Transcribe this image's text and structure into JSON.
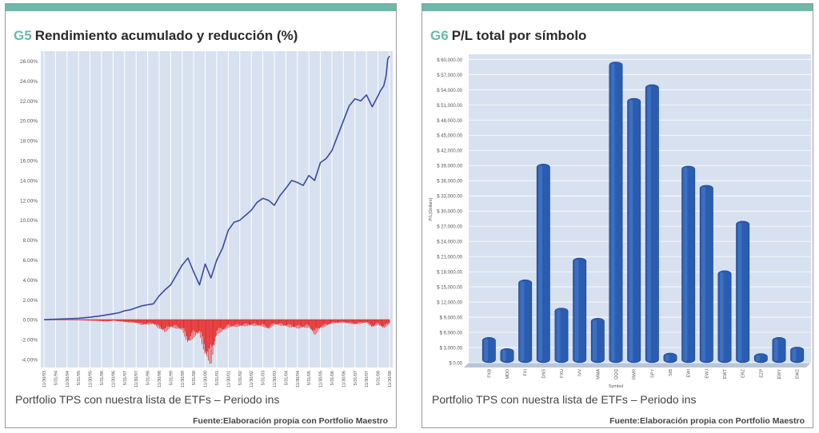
{
  "colors": {
    "accent": "#6bb9a8",
    "plot_bg": "#d7e1ef",
    "line": "#3b4a9e",
    "drawdown": "#e53030",
    "bar": "#2a5cb0"
  },
  "panels": [
    {
      "code": "G5",
      "title": "Rendimiento acumulado y reducción (%)",
      "caption": "Portfolio TPS con nuestra lista de ETFs – Periodo ins",
      "source": "Fuente:Elaboración propia con Portfolio Maestro"
    },
    {
      "code": "G6",
      "title": "P/L total por símbolo",
      "caption": "Portfolio TPS con nuestra lista de ETFs – Periodo ins",
      "source": "Fuente:Elaboración propia con Portfolio Maestro"
    }
  ],
  "chart_data": [
    {
      "type": "area",
      "title": "Rendimiento acumulado y reducción (%)",
      "xlabel": "",
      "ylabel": "",
      "ylim": [
        -4.8,
        27
      ],
      "yticks": [
        26,
        24,
        22,
        20,
        18,
        16,
        14,
        12,
        10,
        8,
        6,
        4,
        2,
        0,
        -2,
        -4
      ],
      "ytick_labels": [
        "26.00%",
        "24.00%",
        "22.00%",
        "20.00%",
        "18.00%",
        "16.00%",
        "14.00%",
        "12.00%",
        "10.00%",
        "8.00%",
        "6.00%",
        "4.00%",
        "2.00%",
        "0.00%",
        "-2.00%",
        "-4.00%"
      ],
      "xtick_labels": [
        "11/30/93",
        "5/31/94",
        "11/30/94",
        "5/31/95",
        "11/30/95",
        "5/31/96",
        "11/30/96",
        "5/31/97",
        "11/30/97",
        "5/31/98",
        "11/30/98",
        "5/31/99",
        "11/30/99",
        "5/31/00",
        "11/30/00",
        "5/31/01",
        "11/30/01",
        "5/31/02",
        "11/30/02",
        "5/31/03",
        "11/30/03",
        "5/31/04",
        "11/30/04",
        "5/31/05",
        "11/30/05",
        "5/31/06",
        "11/30/06",
        "5/31/07",
        "11/30/07",
        "5/31/08",
        "11/30/08"
      ],
      "grid": true,
      "series": [
        {
          "kind": "line",
          "x": [
            0,
            1,
            2,
            3,
            4,
            5,
            6,
            6.5,
            7,
            7.5,
            8,
            8.5,
            9,
            9.5,
            10,
            10.5,
            11,
            11.5,
            12,
            12.5,
            13,
            13.5,
            14,
            14.5,
            15,
            15.5,
            16,
            16.5,
            17,
            17.5,
            18,
            18.5,
            19,
            19.5,
            20,
            20.5,
            21,
            21.5,
            22,
            22.5,
            23,
            23.5,
            24,
            24.5,
            25,
            25.5,
            26,
            26.5,
            27,
            27.5,
            28,
            28.5,
            29,
            29.2,
            29.5,
            29.7,
            29.85,
            30
          ],
          "y": [
            0,
            0.05,
            0.1,
            0.15,
            0.25,
            0.4,
            0.6,
            0.7,
            0.9,
            1.0,
            1.2,
            1.4,
            1.5,
            1.6,
            2.4,
            3.0,
            3.5,
            4.5,
            5.5,
            6.2,
            4.8,
            3.5,
            5.6,
            4.2,
            6.0,
            7.2,
            9.0,
            9.8,
            10.0,
            10.5,
            11.0,
            11.8,
            12.2,
            12.0,
            11.5,
            12.5,
            13.2,
            14.0,
            13.8,
            13.5,
            14.5,
            14.0,
            15.8,
            16.2,
            17.0,
            18.5,
            20.0,
            21.5,
            22.2,
            22.0,
            22.6,
            21.4,
            22.5,
            23.0,
            23.5,
            24.5,
            26.2,
            26.5
          ]
        },
        {
          "kind": "drawdown",
          "x": [
            0,
            3,
            5,
            5.5,
            6,
            7,
            8,
            8.5,
            9,
            9.5,
            10,
            10.5,
            11,
            11.5,
            12,
            12.5,
            13,
            13.5,
            14,
            14.5,
            15,
            15.5,
            16,
            17,
            18,
            19,
            19.5,
            20,
            21,
            22,
            23,
            23.5,
            24,
            25,
            26,
            27,
            28,
            28.5,
            29,
            29.5,
            30
          ],
          "y": [
            0,
            -0.05,
            -0.15,
            -0.2,
            -0.1,
            -0.25,
            -0.35,
            -0.55,
            -0.5,
            -0.45,
            -0.9,
            -1.3,
            -0.8,
            -0.9,
            -1.1,
            -2.5,
            -1.8,
            -1.4,
            -3.8,
            -4.6,
            -1.5,
            -1.2,
            -0.8,
            -0.7,
            -0.6,
            -0.7,
            -1.0,
            -0.5,
            -0.7,
            -0.9,
            -0.8,
            -1.6,
            -0.9,
            -0.4,
            -0.3,
            -0.5,
            -0.3,
            -0.8,
            -0.5,
            -0.9,
            -0.4
          ]
        }
      ]
    },
    {
      "type": "bar",
      "title": "P/L total por símbolo",
      "xlabel": "Symbol",
      "ylabel": "P/L(Dollars)",
      "ylim": [
        0,
        61000
      ],
      "yticks": [
        0,
        3000,
        6000,
        9000,
        12000,
        15000,
        18000,
        21000,
        24000,
        27000,
        30000,
        33000,
        36000,
        39000,
        42000,
        45000,
        48000,
        51000,
        54000,
        57000,
        60000
      ],
      "ytick_labels": [
        "$ 0.00",
        "$ 3,000.00",
        "$ 6,000.00",
        "$ 9,000.00",
        "$ 12,000.00",
        "$ 15,000.00",
        "$ 18,000.00",
        "$ 21,000.00",
        "$ 24,000.00",
        "$ 27,000.00",
        "$ 30,000.00",
        "$ 33,000.00",
        "$ 36,000.00",
        "$ 39,000.00",
        "$ 42,000.00",
        "$ 45,000.00",
        "$ 48,000.00",
        "$ 51,000.00",
        "$ 54,000.00",
        "$ 57,000.00",
        "$ 60,000.00"
      ],
      "categories": [
        "FXB",
        "MDD",
        "FXI",
        "DNS",
        "FXU",
        "IVV",
        "MMA",
        "QQQ",
        "RWR",
        "SPY",
        "SIB",
        "EWI",
        "EWJ",
        "EWT",
        "ERZ",
        "EZP",
        "EWY",
        "EWZ"
      ],
      "values": [
        5000,
        2800,
        16400,
        39300,
        10800,
        20700,
        8800,
        59500,
        52300,
        55000,
        1900,
        38900,
        35100,
        18200,
        28000,
        1800,
        5000,
        3100
      ],
      "grid": true
    }
  ]
}
